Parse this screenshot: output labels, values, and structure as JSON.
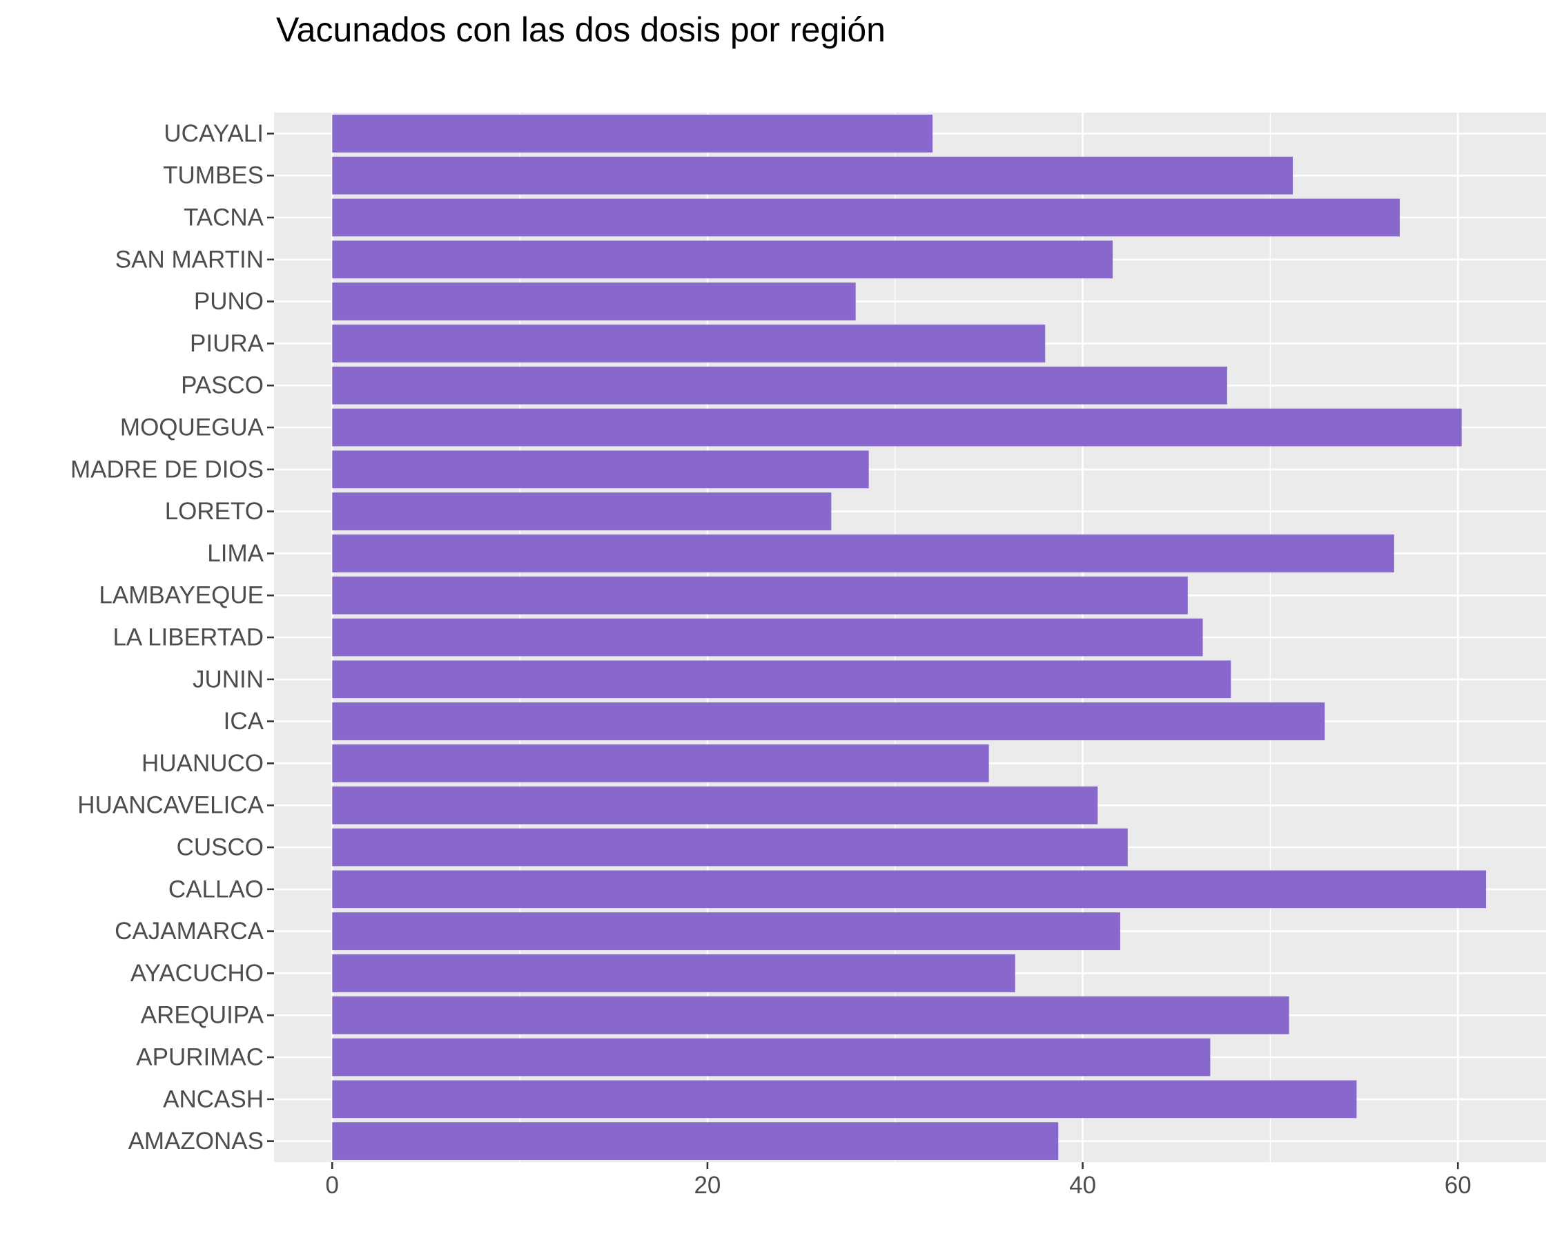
{
  "chart_data": {
    "type": "bar",
    "orientation": "horizontal",
    "title": "Vacunados con las dos dosis por región",
    "xlabel": "",
    "ylabel": "",
    "categories": [
      "AMAZONAS",
      "ANCASH",
      "APURIMAC",
      "AREQUIPA",
      "AYACUCHO",
      "CAJAMARCA",
      "CALLAO",
      "CUSCO",
      "HUANCAVELICA",
      "HUANUCO",
      "ICA",
      "JUNIN",
      "LA LIBERTAD",
      "LAMBAYEQUE",
      "LIMA",
      "LORETO",
      "MADRE DE DIOS",
      "MOQUEGUA",
      "PASCO",
      "PIURA",
      "PUNO",
      "SAN MARTIN",
      "TACNA",
      "TUMBES",
      "UCAYALI"
    ],
    "values": [
      38.7,
      54.6,
      46.8,
      51.0,
      36.4,
      42.0,
      61.5,
      42.4,
      40.8,
      35.0,
      52.9,
      47.9,
      46.4,
      45.6,
      56.6,
      26.6,
      28.6,
      60.2,
      47.7,
      38.0,
      27.9,
      41.6,
      56.9,
      51.2,
      32.0
    ],
    "xlim": [
      -3.1,
      64.7
    ],
    "xticks": [
      0,
      20,
      40,
      60
    ],
    "grid": true,
    "bar_color": "#8868CC",
    "panel_background": "#EBEBEB",
    "grid_color": "#FFFFFF"
  }
}
